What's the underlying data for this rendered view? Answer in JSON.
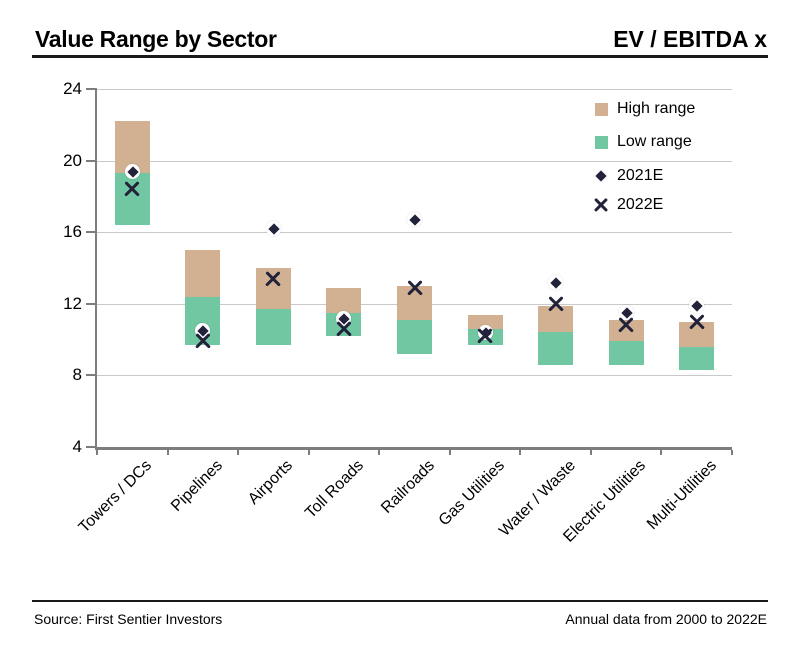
{
  "header": {
    "title": "Value Range by Sector",
    "unit_label": "EV / EBITDA x"
  },
  "legend": {
    "items": [
      {
        "label": "High range",
        "swatch": "high"
      },
      {
        "label": "Low range",
        "swatch": "low"
      },
      {
        "label": "2021E",
        "marker": "diamond"
      },
      {
        "label": "2022E",
        "marker": "x"
      }
    ]
  },
  "colors": {
    "high": "#d2b192",
    "low": "#72c7a3",
    "marker": "#22223a",
    "grid": "#c9c9c9",
    "axis": "#7d7d7d",
    "text": "#000000"
  },
  "chart_data": {
    "type": "bar",
    "subtype": "stacked-range-with-markers",
    "title": "Value Range by Sector",
    "value_label": "EV / EBITDA x",
    "ylim": [
      4,
      24
    ],
    "yticks": [
      4,
      8,
      12,
      16,
      20,
      24
    ],
    "grid": true,
    "legend_position": "top-right",
    "categories": [
      "Towers / DCs",
      "Pipelines",
      "Airports",
      "Toll Roads",
      "Railroads",
      "Gas Utilities",
      "Water / Waste",
      "Electric Utilities",
      "Multi-Utilities"
    ],
    "series": [
      {
        "name": "Low range",
        "render": "bar-segment",
        "color_key": "low",
        "from": [
          16.4,
          9.7,
          9.7,
          10.2,
          9.2,
          9.7,
          8.6,
          8.6,
          8.3
        ],
        "to": [
          19.3,
          12.4,
          11.7,
          11.5,
          11.1,
          10.6,
          10.4,
          9.9,
          9.6
        ]
      },
      {
        "name": "High range",
        "render": "bar-segment",
        "color_key": "high",
        "from": [
          19.3,
          12.4,
          11.7,
          11.5,
          11.1,
          10.6,
          10.4,
          9.9,
          9.6
        ],
        "to": [
          22.2,
          15.0,
          14.0,
          12.9,
          13.0,
          11.4,
          11.9,
          11.1,
          11.0
        ]
      },
      {
        "name": "2021E",
        "render": "marker",
        "marker": "diamond",
        "values": [
          19.4,
          10.5,
          16.2,
          11.2,
          16.7,
          10.4,
          13.2,
          11.5,
          11.9
        ]
      },
      {
        "name": "2022E",
        "render": "marker",
        "marker": "x",
        "values": [
          18.4,
          9.9,
          13.4,
          10.6,
          12.9,
          10.2,
          12.0,
          10.8,
          11.0
        ]
      }
    ]
  },
  "footer": {
    "source": "Source: First Sentier Investors",
    "note": "Annual data from 2000 to 2022E"
  }
}
